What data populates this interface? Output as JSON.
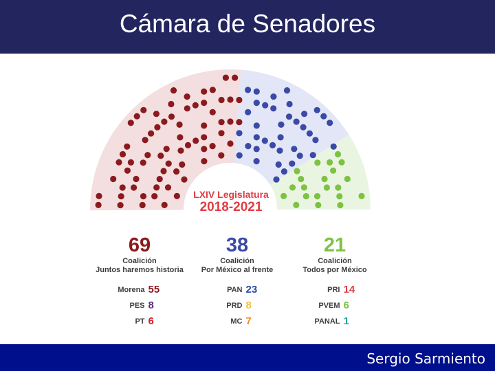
{
  "header": {
    "title": "Cámara de Senadores"
  },
  "legislatura": {
    "line1": "LXIV Legislatura",
    "line2": "2018-2021"
  },
  "coalitions": [
    {
      "total": "69",
      "label_line1": "Coalición",
      "label_line2": "Juntos haremos historia",
      "color": "#8b1a1f",
      "band_color": "#f3dfe0",
      "parties": [
        {
          "name": "Morena",
          "seats": "55",
          "color": "#8b1a1f"
        },
        {
          "name": "PES",
          "seats": "8",
          "color": "#5a2d82"
        },
        {
          "name": "PT",
          "seats": "6",
          "color": "#d4202c"
        }
      ]
    },
    {
      "total": "38",
      "label_line1": "Coalición",
      "label_line2": "Por México al frente",
      "color": "#3a4aa6",
      "band_color": "#e3e6f6",
      "parties": [
        {
          "name": "PAN",
          "seats": "23",
          "color": "#2c4aa6"
        },
        {
          "name": "PRD",
          "seats": "8",
          "color": "#f2c230"
        },
        {
          "name": "MC",
          "seats": "7",
          "color": "#f08a24"
        }
      ]
    },
    {
      "total": "21",
      "label_line1": "Coalición",
      "label_line2": "Todos por México",
      "color": "#7dc242",
      "band_color": "#e9f5e1",
      "parties": [
        {
          "name": "PRI",
          "seats": "14",
          "color": "#e23b44"
        },
        {
          "name": "PVEM",
          "seats": "6",
          "color": "#7dc242"
        },
        {
          "name": "PANAL",
          "seats": "1",
          "color": "#1fa8a0"
        }
      ]
    }
  ],
  "seat_groups": [
    {
      "coalition": "Juntos haremos historia",
      "seats": 69,
      "color": "#8b1a1f"
    },
    {
      "coalition": "Por México al frente",
      "seats": 38,
      "color": "#3a4aa6"
    },
    {
      "coalition": "Todos por México",
      "seats": 21,
      "color": "#7dc242"
    }
  ],
  "footer": {
    "text": "Sergio Sarmiento"
  }
}
